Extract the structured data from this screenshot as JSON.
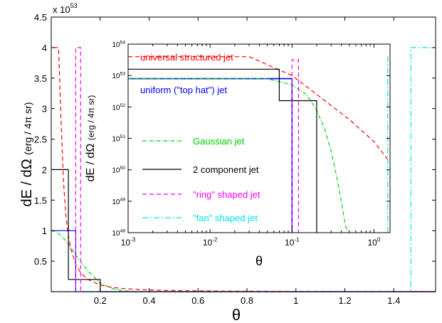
{
  "chart_data": [
    {
      "type": "line",
      "xlabel": "θ",
      "ylabel": "dE / dΩ",
      "ylabel_units": "(erg / 4π sr)",
      "exponent_label": "x 10",
      "exponent_power": "53",
      "xlim": [
        0,
        1.5708
      ],
      "ylim": [
        0,
        4.5
      ],
      "xticks": [
        0.2,
        0.4,
        0.6,
        0.8,
        1,
        1.2,
        1.4
      ],
      "xtick_labels": [
        "0.2",
        "0.4",
        "0.6",
        "0.8",
        "1",
        "1.2",
        "1.4"
      ],
      "yticks": [
        0.5,
        1,
        1.5,
        2,
        2.5,
        3,
        3.5,
        4,
        4.5
      ],
      "ytick_labels": [
        "0.5",
        "1",
        "1.5",
        "2",
        "2.5",
        "3",
        "3.5",
        "4",
        "4.5"
      ],
      "series": [
        {
          "key": "universal",
          "color": "#ff0000",
          "dash": "6,4",
          "x": [
            0.01,
            0.02,
            0.03,
            0.04,
            0.05,
            0.06,
            0.07,
            0.08,
            0.1,
            0.12,
            0.15,
            0.2,
            0.25,
            0.3,
            0.4,
            0.5,
            0.7,
            1.0,
            1.3,
            1.5708
          ],
          "y": [
            4.0,
            4.0,
            4.0,
            2.8,
            1.8,
            1.25,
            0.92,
            0.7,
            0.45,
            0.31,
            0.2,
            0.11,
            0.07,
            0.05,
            0.028,
            0.018,
            0.009,
            0.0045,
            0.003,
            0.002
          ]
        },
        {
          "key": "uniform",
          "color": "#0000ff",
          "dash": "",
          "x": [
            0,
            0.1,
            0.1,
            1.5708
          ],
          "y": [
            1,
            1,
            0,
            0
          ]
        },
        {
          "key": "gaussian",
          "color": "#00cc00",
          "dash": "5,2,1,2",
          "x": [
            0,
            0.02,
            0.04,
            0.06,
            0.08,
            0.1,
            0.12,
            0.15,
            0.2,
            0.25,
            0.3,
            0.35,
            0.4
          ],
          "y": [
            1.0,
            0.98,
            0.92,
            0.83,
            0.72,
            0.6,
            0.49,
            0.34,
            0.14,
            0.05,
            0.012,
            0.002,
            0.0
          ]
        },
        {
          "key": "two_component",
          "color": "#000000",
          "dash": "",
          "x": [
            0,
            0.07,
            0.07,
            0.2,
            0.2,
            1.5708
          ],
          "y": [
            2.0,
            2.0,
            0.2,
            0.2,
            0,
            0
          ]
        },
        {
          "key": "ring",
          "color": "#ff00ff",
          "dash": "6,4",
          "x": [
            0,
            0.1,
            0.1,
            0.12,
            0.12,
            1.5708
          ],
          "y": [
            0,
            0,
            4.0,
            4.0,
            0,
            0
          ]
        },
        {
          "key": "fan",
          "color": "#00e5e5",
          "dash": "8,3,2,3",
          "x": [
            0,
            1.47,
            1.47,
            1.5708
          ],
          "y": [
            0,
            0,
            4.0,
            4.0
          ]
        }
      ]
    },
    {
      "type": "line",
      "inset": true,
      "xlabel": "θ",
      "ylabel": "dE / dΩ",
      "ylabel_units": "(erg / 4π sr)",
      "xscale": "log",
      "yscale": "log",
      "xlim": [
        0.001,
        1.5708
      ],
      "ylim": [
        1e+48,
        1e+54
      ],
      "xtick_labels": [
        {
          "base": "10",
          "exp": "-3",
          "value": 0.001
        },
        {
          "base": "10",
          "exp": "-2",
          "value": 0.01
        },
        {
          "base": "10",
          "exp": "-1",
          "value": 0.1
        },
        {
          "base": "10",
          "exp": "0",
          "value": 1
        }
      ],
      "ytick_labels": [
        {
          "base": "10",
          "exp": "48",
          "value": 48
        },
        {
          "base": "10",
          "exp": "49",
          "value": 49
        },
        {
          "base": "10",
          "exp": "50",
          "value": 50
        },
        {
          "base": "10",
          "exp": "51",
          "value": 51
        },
        {
          "base": "10",
          "exp": "52",
          "value": 52
        },
        {
          "base": "10",
          "exp": "53",
          "value": 53
        },
        {
          "base": "10",
          "exp": "54",
          "value": 54
        }
      ],
      "series": [
        {
          "key": "universal",
          "name": "universal structured jet",
          "color": "#ff0000",
          "dash": "6,4",
          "x": [
            0.001,
            0.03,
            0.1,
            0.2,
            0.5,
            1.0,
            1.5
          ],
          "y": [
            53.6,
            53.6,
            53.0,
            52.4,
            51.6,
            50.9,
            50.3
          ]
        },
        {
          "key": "uniform",
          "name": "uniform (\"top hat\") jet",
          "color": "#0000ff",
          "dash": "",
          "x": [
            0.001,
            0.1,
            0.1
          ],
          "y": [
            52.9,
            52.9,
            48.0
          ]
        },
        {
          "key": "gaussian",
          "name": "Gaussian jet",
          "color": "#00cc00",
          "dash": "5,2,1,2",
          "x": [
            0.001,
            0.05,
            0.1,
            0.15,
            0.2,
            0.25,
            0.3,
            0.35,
            0.4,
            0.45,
            0.5
          ],
          "y": [
            52.9,
            52.9,
            52.7,
            52.4,
            51.9,
            51.3,
            50.6,
            49.8,
            49.0,
            48.2,
            48.0
          ]
        },
        {
          "key": "two_component",
          "name": "2 component jet",
          "color": "#000000",
          "dash": "",
          "x": [
            0.001,
            0.07,
            0.07,
            0.2,
            0.2
          ],
          "y": [
            53.2,
            53.2,
            52.2,
            52.2,
            48.0
          ]
        },
        {
          "key": "ring",
          "name": "\"ring\" shaped jet",
          "color": "#ff00ff",
          "dash": "6,4",
          "x": [
            0.1,
            0.1,
            0.12,
            0.12
          ],
          "y": [
            48.0,
            53.5,
            53.5,
            48.0
          ]
        },
        {
          "key": "fan",
          "name": "\"fan\" shaped jet",
          "color": "#00e5e5",
          "dash": "8,3,2,3",
          "x": [
            1.47,
            1.47,
            1.5708
          ],
          "y": [
            48.0,
            53.6,
            53.6
          ]
        }
      ],
      "annotations": [
        {
          "key": "universal",
          "text": "universal structured jet",
          "color": "#ff0000"
        },
        {
          "key": "uniform",
          "text": "uniform (\"top hat\") jet",
          "color": "#0000ff"
        }
      ],
      "legend": [
        {
          "key": "gaussian",
          "text": "Gaussian jet",
          "color": "#00cc00"
        },
        {
          "key": "two_component",
          "text": "2 component jet",
          "color": "#000000"
        },
        {
          "key": "ring",
          "text": "\"ring\" shaped jet",
          "color": "#ff00ff"
        },
        {
          "key": "fan",
          "text": "\"fan\" shaped jet",
          "color": "#00e5e5"
        }
      ]
    }
  ]
}
